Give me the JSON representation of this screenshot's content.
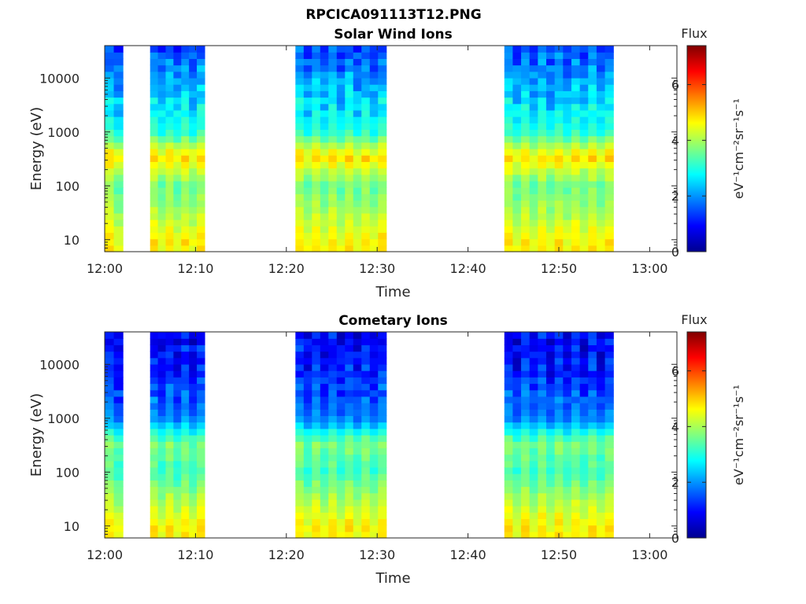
{
  "figure": {
    "title": "RPCICA091113T12.PNG"
  },
  "chart_data": [
    {
      "type": "heatmap",
      "title": "Solar Wind Ions",
      "xlabel": "Time",
      "ylabel": "Energy (eV)",
      "x_range": [
        "12:00",
        "13:03"
      ],
      "x_ticks": [
        "12:00",
        "12:10",
        "12:20",
        "12:30",
        "12:40",
        "12:50",
        "13:00"
      ],
      "y_scale": "log",
      "y_range": [
        6,
        40000
      ],
      "y_ticks": [
        "10",
        "100",
        "1000",
        "10000"
      ],
      "colorbar": {
        "label": "Flux",
        "unit": "eV⁻¹cm⁻²sr⁻¹s⁻¹",
        "range": [
          0,
          7.4
        ],
        "ticks": [
          "0",
          "2",
          "4",
          "6"
        ],
        "colormap": "jet"
      },
      "data_intervals": [
        {
          "start": "12:00",
          "end": "12:02"
        },
        {
          "start": "12:05",
          "end": "12:11"
        },
        {
          "start": "12:21",
          "end": "12:31"
        },
        {
          "start": "12:44",
          "end": "12:56"
        }
      ],
      "features": {
        "energy_column_levels": [
          {
            "energy_eV": 10,
            "flux": 4.6
          },
          {
            "energy_eV": 30,
            "flux": 4.0
          },
          {
            "energy_eV": 100,
            "flux": 3.5
          },
          {
            "energy_eV": 350,
            "flux": 4.8,
            "note": "solar wind peak"
          },
          {
            "energy_eV": 1000,
            "flux": 3.0
          },
          {
            "energy_eV": 10000,
            "flux": 2.0
          },
          {
            "energy_eV": 35000,
            "flux": 1.4
          }
        ]
      }
    },
    {
      "type": "heatmap",
      "title": "Cometary Ions",
      "xlabel": "Time",
      "ylabel": "Energy (eV)",
      "x_range": [
        "12:00",
        "13:03"
      ],
      "x_ticks": [
        "12:00",
        "12:10",
        "12:20",
        "12:30",
        "12:40",
        "12:50",
        "13:00"
      ],
      "y_scale": "log",
      "y_range": [
        6,
        40000
      ],
      "y_ticks": [
        "10",
        "100",
        "1000",
        "10000"
      ],
      "colorbar": {
        "label": "Flux",
        "unit": "eV⁻¹cm⁻²sr⁻¹s⁻¹",
        "range": [
          0,
          7.4
        ],
        "ticks": [
          "0",
          "2",
          "4",
          "6"
        ],
        "colormap": "jet"
      },
      "data_intervals": [
        {
          "start": "12:00",
          "end": "12:02"
        },
        {
          "start": "12:05",
          "end": "12:11"
        },
        {
          "start": "12:21",
          "end": "12:31"
        },
        {
          "start": "12:44",
          "end": "12:56"
        }
      ],
      "features": {
        "energy_column_levels": [
          {
            "energy_eV": 10,
            "flux": 4.6
          },
          {
            "energy_eV": 30,
            "flux": 4.0
          },
          {
            "energy_eV": 100,
            "flux": 3.2
          },
          {
            "energy_eV": 350,
            "flux": 3.6
          },
          {
            "energy_eV": 1000,
            "flux": 1.8
          },
          {
            "energy_eV": 10000,
            "flux": 1.0
          },
          {
            "energy_eV": 35000,
            "flux": 0.9
          }
        ]
      }
    }
  ]
}
